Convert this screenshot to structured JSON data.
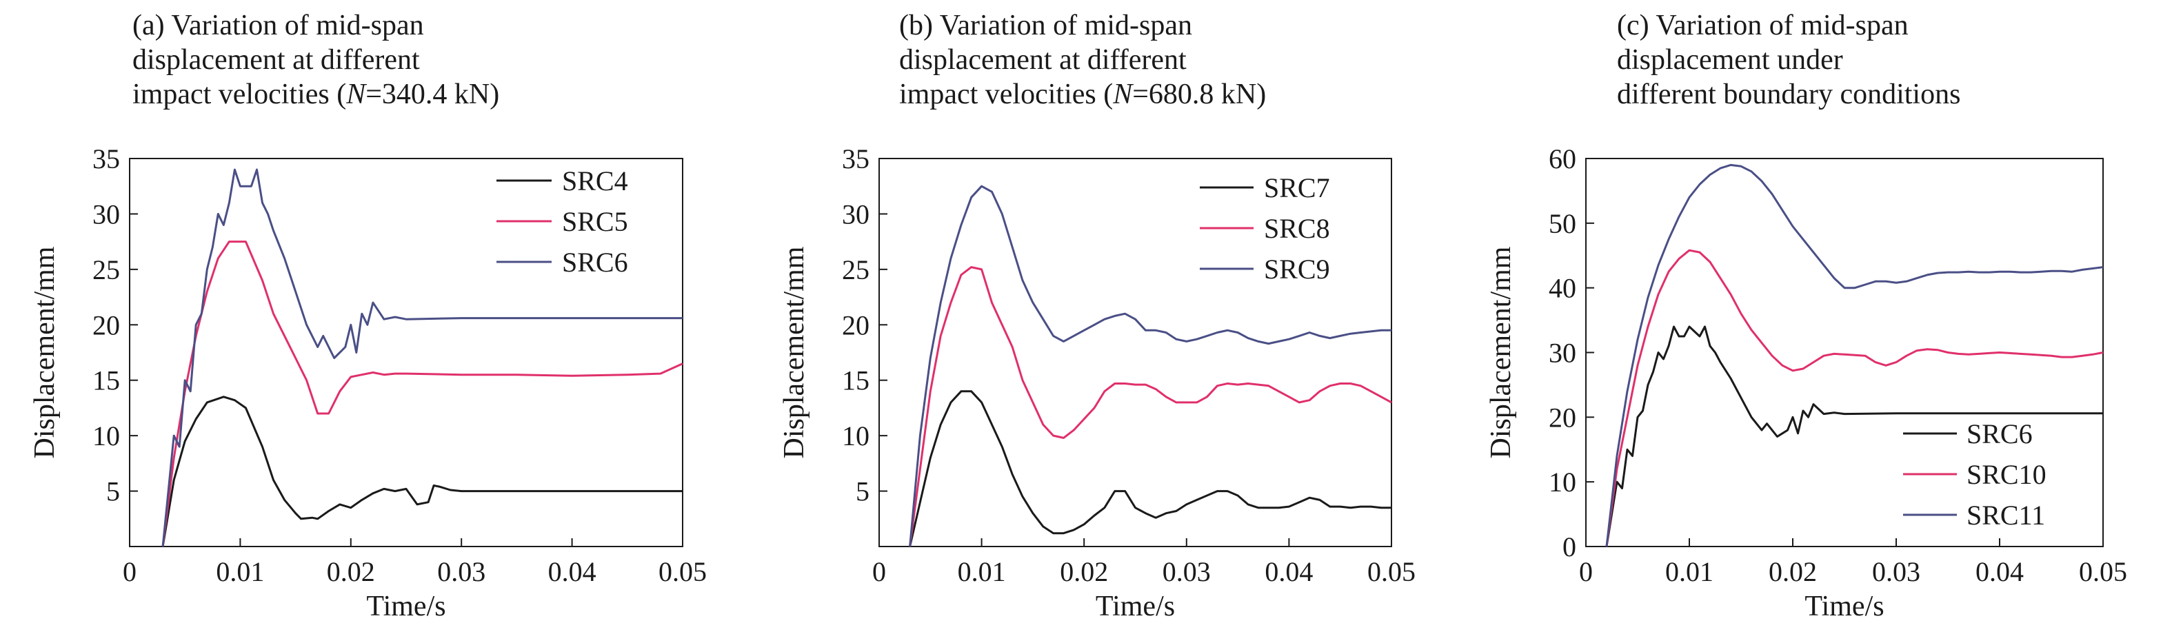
{
  "colors": {
    "black": "#1a1a1a",
    "pink": "#e0306a",
    "navy": "#4a4f86"
  },
  "chart_data": [
    {
      "type": "line",
      "title": [
        "(a) Variation of mid-span",
        "displacement at different",
        "impact velocities (N=340.4 kN)"
      ],
      "xlabel": "Time/s",
      "ylabel": "Displacement/mm",
      "xlim": [
        0,
        0.05
      ],
      "ylim": [
        0,
        35
      ],
      "xticks": [
        "0",
        "0.01",
        "0.02",
        "0.03",
        "0.04",
        "0.05"
      ],
      "yticks": [
        "5",
        "10",
        "15",
        "20",
        "25",
        "30",
        "35"
      ],
      "legend_position": "top-right",
      "series": [
        {
          "name": "SRC4",
          "color": "#1a1a1a",
          "x": [
            0.003,
            0.004,
            0.005,
            0.006,
            0.007,
            0.0085,
            0.0095,
            0.0105,
            0.012,
            0.013,
            0.014,
            0.015,
            0.0155,
            0.0165,
            0.017,
            0.018,
            0.019,
            0.02,
            0.021,
            0.022,
            0.023,
            0.024,
            0.025,
            0.026,
            0.027,
            0.0275,
            0.028,
            0.029,
            0.03,
            0.04,
            0.05
          ],
          "values": [
            0,
            6,
            9.5,
            11.5,
            13,
            13.5,
            13.2,
            12.5,
            9,
            6,
            4.2,
            3,
            2.5,
            2.6,
            2.5,
            3.2,
            3.8,
            3.5,
            4.2,
            4.8,
            5.2,
            5,
            5.2,
            3.8,
            4,
            5.5,
            5.4,
            5.1,
            5,
            5,
            5
          ]
        },
        {
          "name": "SRC5",
          "color": "#e0306a",
          "x": [
            0.003,
            0.004,
            0.005,
            0.006,
            0.007,
            0.008,
            0.009,
            0.0105,
            0.012,
            0.013,
            0.014,
            0.015,
            0.016,
            0.017,
            0.018,
            0.019,
            0.02,
            0.021,
            0.022,
            0.023,
            0.024,
            0.025,
            0.03,
            0.035,
            0.04,
            0.045,
            0.048,
            0.05
          ],
          "values": [
            0,
            8,
            14,
            19,
            23,
            26,
            27.5,
            27.5,
            24,
            21,
            19,
            17,
            15,
            12,
            12,
            14,
            15.3,
            15.5,
            15.7,
            15.5,
            15.6,
            15.6,
            15.5,
            15.5,
            15.4,
            15.5,
            15.6,
            16.5
          ]
        },
        {
          "name": "SRC6",
          "color": "#4a4f86",
          "x": [
            0.003,
            0.004,
            0.0045,
            0.005,
            0.0055,
            0.006,
            0.0065,
            0.007,
            0.0075,
            0.008,
            0.0085,
            0.009,
            0.0095,
            0.01,
            0.011,
            0.0115,
            0.012,
            0.0125,
            0.013,
            0.014,
            0.015,
            0.016,
            0.017,
            0.0175,
            0.018,
            0.0185,
            0.019,
            0.0195,
            0.02,
            0.0205,
            0.021,
            0.0215,
            0.022,
            0.023,
            0.024,
            0.025,
            0.03,
            0.04,
            0.05
          ],
          "values": [
            0,
            10,
            9,
            15,
            14,
            20,
            21,
            25,
            27,
            30,
            29,
            31,
            34,
            32.5,
            32.5,
            34,
            31,
            30,
            28.5,
            26,
            23,
            20,
            18,
            19,
            18,
            17,
            17.5,
            18,
            20,
            17.5,
            21,
            20,
            22,
            20.5,
            20.7,
            20.5,
            20.6,
            20.6,
            20.6
          ]
        }
      ]
    },
    {
      "type": "line",
      "title": [
        "(b) Variation of mid-span",
        "displacement at different",
        "impact velocities (N=680.8 kN)"
      ],
      "xlabel": "Time/s",
      "ylabel": "Displacement/mm",
      "xlim": [
        0,
        0.05
      ],
      "ylim": [
        0,
        35
      ],
      "xticks": [
        "0",
        "0.01",
        "0.02",
        "0.03",
        "0.04",
        "0.05"
      ],
      "yticks": [
        "5",
        "10",
        "15",
        "20",
        "25",
        "30",
        "35"
      ],
      "legend_position": "top-right",
      "series": [
        {
          "name": "SRC7",
          "color": "#1a1a1a",
          "x": [
            0.003,
            0.004,
            0.005,
            0.006,
            0.007,
            0.008,
            0.009,
            0.01,
            0.011,
            0.012,
            0.013,
            0.014,
            0.015,
            0.016,
            0.017,
            0.018,
            0.019,
            0.02,
            0.021,
            0.022,
            0.023,
            0.024,
            0.025,
            0.026,
            0.027,
            0.028,
            0.029,
            0.03,
            0.031,
            0.032,
            0.033,
            0.034,
            0.035,
            0.036,
            0.037,
            0.038,
            0.039,
            0.04,
            0.041,
            0.042,
            0.043,
            0.044,
            0.045,
            0.046,
            0.047,
            0.048,
            0.049,
            0.05
          ],
          "values": [
            0,
            4,
            8,
            11,
            13,
            14,
            14,
            13,
            11,
            9,
            6.5,
            4.5,
            3,
            1.8,
            1.2,
            1.2,
            1.5,
            2,
            2.8,
            3.5,
            5,
            5,
            3.5,
            3,
            2.6,
            3,
            3.2,
            3.8,
            4.2,
            4.6,
            5,
            5,
            4.6,
            3.8,
            3.5,
            3.5,
            3.5,
            3.6,
            4,
            4.4,
            4.2,
            3.6,
            3.6,
            3.5,
            3.6,
            3.6,
            3.5,
            3.5
          ]
        },
        {
          "name": "SRC8",
          "color": "#e0306a",
          "x": [
            0.003,
            0.004,
            0.005,
            0.006,
            0.007,
            0.008,
            0.009,
            0.01,
            0.011,
            0.012,
            0.013,
            0.014,
            0.015,
            0.016,
            0.017,
            0.018,
            0.019,
            0.02,
            0.021,
            0.022,
            0.023,
            0.024,
            0.025,
            0.026,
            0.027,
            0.028,
            0.029,
            0.03,
            0.031,
            0.032,
            0.033,
            0.034,
            0.035,
            0.036,
            0.037,
            0.038,
            0.039,
            0.04,
            0.041,
            0.042,
            0.043,
            0.044,
            0.045,
            0.046,
            0.047,
            0.048,
            0.049,
            0.05
          ],
          "values": [
            0,
            7,
            14,
            19,
            22,
            24.5,
            25.2,
            25,
            22,
            20,
            18,
            15,
            13,
            11,
            10,
            9.8,
            10.5,
            11.5,
            12.5,
            14,
            14.7,
            14.7,
            14.6,
            14.6,
            14.2,
            13.5,
            13,
            13,
            13,
            13.5,
            14.5,
            14.7,
            14.6,
            14.7,
            14.6,
            14.5,
            14,
            13.5,
            13,
            13.2,
            14,
            14.5,
            14.7,
            14.7,
            14.5,
            14,
            13.5,
            13
          ]
        },
        {
          "name": "SRC9",
          "color": "#4a4f86",
          "x": [
            0.003,
            0.004,
            0.005,
            0.006,
            0.007,
            0.008,
            0.009,
            0.01,
            0.011,
            0.012,
            0.013,
            0.014,
            0.015,
            0.016,
            0.017,
            0.018,
            0.019,
            0.02,
            0.021,
            0.022,
            0.023,
            0.024,
            0.025,
            0.026,
            0.027,
            0.028,
            0.029,
            0.03,
            0.031,
            0.032,
            0.033,
            0.034,
            0.035,
            0.036,
            0.037,
            0.038,
            0.039,
            0.04,
            0.041,
            0.042,
            0.043,
            0.044,
            0.045,
            0.046,
            0.047,
            0.048,
            0.049,
            0.05
          ],
          "values": [
            0,
            10,
            17,
            22,
            26,
            29,
            31.5,
            32.5,
            32,
            30,
            27,
            24,
            22,
            20.5,
            19,
            18.5,
            19,
            19.5,
            20,
            20.5,
            20.8,
            21,
            20.5,
            19.5,
            19.5,
            19.3,
            18.7,
            18.5,
            18.7,
            19,
            19.3,
            19.5,
            19.3,
            18.8,
            18.5,
            18.3,
            18.5,
            18.7,
            19,
            19.3,
            19,
            18.8,
            19,
            19.2,
            19.3,
            19.4,
            19.5,
            19.5
          ]
        }
      ]
    },
    {
      "type": "line",
      "title": [
        "(c) Variation of mid-span",
        "displacement under",
        "different boundary conditions"
      ],
      "xlabel": "Time/s",
      "ylabel": "Displacement/mm",
      "xlim": [
        0,
        0.05
      ],
      "ylim": [
        0,
        60
      ],
      "xticks": [
        "0",
        "0.01",
        "0.02",
        "0.03",
        "0.04",
        "0.05"
      ],
      "yticks": [
        "0",
        "10",
        "20",
        "30",
        "40",
        "50",
        "60"
      ],
      "legend_position": "bottom-right",
      "series": [
        {
          "name": "SRC6",
          "color": "#1a1a1a",
          "x": [
            0.002,
            0.003,
            0.0035,
            0.004,
            0.0045,
            0.005,
            0.0055,
            0.006,
            0.0065,
            0.007,
            0.0075,
            0.008,
            0.0085,
            0.009,
            0.0095,
            0.01,
            0.011,
            0.0115,
            0.012,
            0.0125,
            0.013,
            0.014,
            0.015,
            0.016,
            0.017,
            0.0175,
            0.018,
            0.0185,
            0.019,
            0.0195,
            0.02,
            0.0205,
            0.021,
            0.0215,
            0.022,
            0.023,
            0.024,
            0.025,
            0.03,
            0.04,
            0.05
          ],
          "values": [
            0,
            10,
            9,
            15,
            14,
            20,
            21,
            25,
            27,
            30,
            29,
            31,
            34,
            32.5,
            32.5,
            34,
            32.5,
            34,
            31,
            30,
            28.5,
            26,
            23,
            20,
            18,
            19,
            18,
            17,
            17.5,
            18,
            20,
            17.5,
            21,
            20,
            22,
            20.5,
            20.7,
            20.5,
            20.6,
            20.6,
            20.6
          ]
        },
        {
          "name": "SRC10",
          "color": "#e0306a",
          "x": [
            0.002,
            0.003,
            0.004,
            0.005,
            0.006,
            0.007,
            0.008,
            0.009,
            0.01,
            0.011,
            0.012,
            0.013,
            0.014,
            0.015,
            0.016,
            0.017,
            0.018,
            0.019,
            0.02,
            0.021,
            0.022,
            0.023,
            0.024,
            0.025,
            0.026,
            0.027,
            0.028,
            0.029,
            0.03,
            0.031,
            0.032,
            0.033,
            0.034,
            0.035,
            0.036,
            0.037,
            0.038,
            0.039,
            0.04,
            0.041,
            0.042,
            0.043,
            0.044,
            0.045,
            0.046,
            0.047,
            0.048,
            0.049,
            0.05
          ],
          "values": [
            0,
            12,
            20,
            28,
            34,
            39,
            42.5,
            44.5,
            45.8,
            45.5,
            44,
            41.5,
            39,
            36,
            33.5,
            31.5,
            29.5,
            28,
            27.2,
            27.5,
            28.5,
            29.5,
            29.8,
            29.7,
            29.6,
            29.5,
            28.5,
            28,
            28.5,
            29.5,
            30.3,
            30.5,
            30.4,
            30,
            29.8,
            29.7,
            29.8,
            29.9,
            30,
            29.9,
            29.8,
            29.7,
            29.6,
            29.5,
            29.3,
            29.3,
            29.5,
            29.7,
            30
          ]
        },
        {
          "name": "SRC11",
          "color": "#4a4f86",
          "x": [
            0.002,
            0.003,
            0.004,
            0.005,
            0.006,
            0.007,
            0.008,
            0.009,
            0.01,
            0.011,
            0.012,
            0.013,
            0.014,
            0.015,
            0.016,
            0.017,
            0.018,
            0.019,
            0.02,
            0.021,
            0.022,
            0.023,
            0.024,
            0.025,
            0.026,
            0.027,
            0.028,
            0.029,
            0.03,
            0.031,
            0.032,
            0.033,
            0.034,
            0.035,
            0.036,
            0.037,
            0.038,
            0.039,
            0.04,
            0.041,
            0.042,
            0.043,
            0.044,
            0.045,
            0.046,
            0.047,
            0.048,
            0.049,
            0.05
          ],
          "values": [
            0,
            14,
            24,
            32,
            38.5,
            43.5,
            47.5,
            51,
            54,
            56,
            57.5,
            58.5,
            59,
            58.8,
            58,
            56.5,
            54.5,
            52,
            49.5,
            47.5,
            45.5,
            43.5,
            41.5,
            40,
            40,
            40.5,
            41,
            41,
            40.8,
            41,
            41.5,
            42,
            42.3,
            42.4,
            42.4,
            42.5,
            42.4,
            42.4,
            42.5,
            42.5,
            42.4,
            42.4,
            42.5,
            42.6,
            42.6,
            42.5,
            42.8,
            43,
            43.2
          ]
        }
      ]
    }
  ]
}
